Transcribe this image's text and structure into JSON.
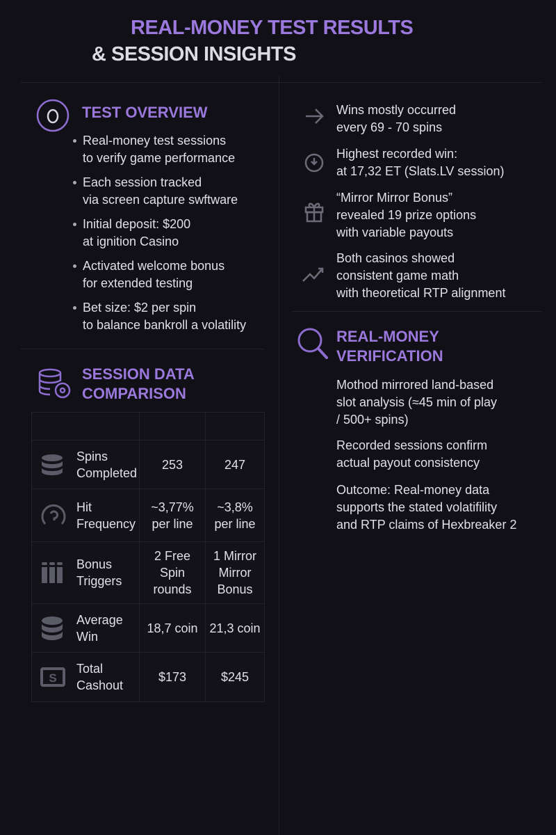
{
  "header": {
    "title_line1": "REAL-MONEY TEST RESULTS",
    "title_line2": "& SESSION INSIGHTS"
  },
  "test_overview": {
    "title": "TEST OVERVIEW",
    "icon": "circle-o-icon",
    "bullets": [
      [
        "Real-money test sessions",
        "to verify game performance"
      ],
      [
        "Each session tracked",
        "via screen capture swftware"
      ],
      [
        "Initial deposit: $200",
        "at ignition Casino"
      ],
      [
        "Activated welcome bonus",
        "for extended testing"
      ],
      [
        "Bet size: $2 per spin",
        "to balance bankroll a volatility"
      ]
    ]
  },
  "session_data": {
    "title_line1": "SESSION DATA",
    "title_line2": "COMPARISON",
    "icon": "database-icon",
    "rows": [
      {
        "label": [
          "Spins",
          "Completed"
        ],
        "icon": "coin-stack-icon",
        "a": [
          "253"
        ],
        "b": [
          "247"
        ]
      },
      {
        "label": [
          "Hit",
          "Frequency"
        ],
        "icon": "gauge-icon",
        "a": [
          "~3,77%",
          "per line"
        ],
        "b": [
          "~3,8%",
          "per line"
        ]
      },
      {
        "label": [
          "Bonus",
          "Triggers"
        ],
        "icon": "grid-icon",
        "a": [
          "2 Free",
          "Spin",
          "rounds"
        ],
        "b": [
          "1 Mirror",
          "Mirror",
          "Bonus"
        ]
      },
      {
        "label": [
          "Average",
          "Win"
        ],
        "icon": "coin-stack-icon",
        "a": [
          "18,7 coin"
        ],
        "b": [
          "21,3 coin"
        ]
      },
      {
        "label": [
          "Total",
          "Cashout"
        ],
        "icon": "cash-icon",
        "a": [
          "$173"
        ],
        "b": [
          "$245"
        ]
      }
    ]
  },
  "insights": [
    {
      "icon": "arrow-right-icon",
      "lines": [
        "Wins mostly occurred",
        "every 69 - 70 spins"
      ]
    },
    {
      "icon": "clock-icon",
      "lines": [
        "Highest recorded win:",
        "at 17,32 ET (Slats.LV session)"
      ]
    },
    {
      "icon": "gift-icon",
      "lines": [
        "“Mirror Mirror Bonus”",
        "revealed 19 prize options",
        "with variable payouts"
      ]
    },
    {
      "icon": "trend-icon",
      "lines": [
        "Both casinos showed",
        "consistent game math",
        "with theoretical RTP alignment"
      ]
    }
  ],
  "verification": {
    "title_line1": "REAL-MONEY",
    "title_line2": "VERIFICATION",
    "icon": "magnifier-icon",
    "paragraphs": [
      [
        "Mothod mirrored land-based",
        "slot analysis (≈45 min of play",
        "/ 500+ spins)"
      ],
      [
        "Recorded sessions confirm",
        "actual payout consistency"
      ],
      [
        "Outcome: Real-money data",
        "supports the stated volatifility",
        "and RTP claims of Hexbreaker 2"
      ]
    ]
  },
  "colors": {
    "accent": "#9a78dc",
    "background": "#111016",
    "text": "#e4e3ea"
  }
}
